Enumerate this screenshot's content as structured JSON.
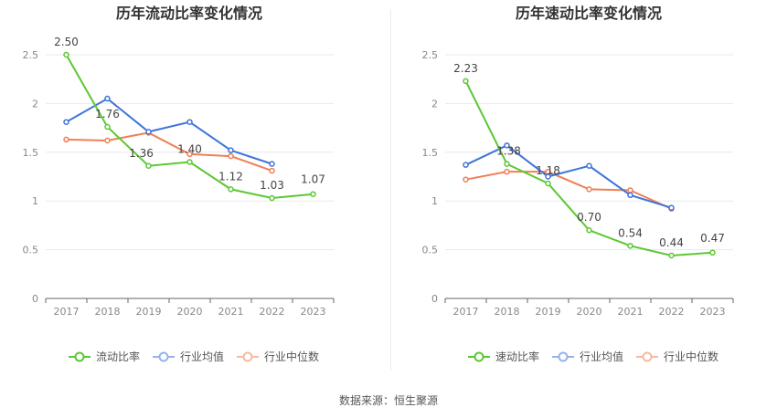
{
  "source": "数据来源：恒生聚源",
  "colors": {
    "company": "#5cc832",
    "industry_avg": "#3e74d9",
    "industry_median": "#f07f56"
  },
  "chart_data": [
    {
      "type": "line",
      "title": "历年流动比率变化情况",
      "categories": [
        "2017",
        "2018",
        "2019",
        "2020",
        "2021",
        "2022",
        "2023"
      ],
      "ylim": [
        0,
        2.5
      ],
      "yticks": [
        "0",
        "0.5",
        "1",
        "1.5",
        "2",
        "2.5"
      ],
      "grid": true,
      "legend_position": "bottom",
      "series": [
        {
          "name": "流动比率",
          "values": [
            2.5,
            1.76,
            1.36,
            1.4,
            1.12,
            1.03,
            1.07
          ],
          "labels": [
            "2.50",
            "1.76",
            "1.36",
            "1.40",
            "1.12",
            "1.03",
            "1.07"
          ]
        },
        {
          "name": "行业均值",
          "values": [
            1.81,
            2.05,
            1.71,
            1.81,
            1.52,
            1.38,
            null
          ]
        },
        {
          "name": "行业中位数",
          "values": [
            1.63,
            1.62,
            1.7,
            1.48,
            1.46,
            1.31,
            null
          ]
        }
      ]
    },
    {
      "type": "line",
      "title": "历年速动比率变化情况",
      "categories": [
        "2017",
        "2018",
        "2019",
        "2020",
        "2021",
        "2022",
        "2023"
      ],
      "ylim": [
        0,
        2.5
      ],
      "yticks": [
        "0",
        "0.5",
        "1",
        "1.5",
        "2",
        "2.5"
      ],
      "grid": true,
      "legend_position": "bottom",
      "series": [
        {
          "name": "速动比率",
          "values": [
            2.23,
            1.38,
            1.18,
            0.7,
            0.54,
            0.44,
            0.47
          ],
          "labels": [
            "2.23",
            "1.38",
            "1.18",
            "0.70",
            "0.54",
            "0.44",
            "0.47"
          ]
        },
        {
          "name": "行业均值",
          "values": [
            1.37,
            1.57,
            1.25,
            1.36,
            1.06,
            0.93,
            null
          ]
        },
        {
          "name": "行业中位数",
          "values": [
            1.22,
            1.3,
            1.3,
            1.12,
            1.11,
            0.92,
            null
          ]
        }
      ]
    }
  ]
}
